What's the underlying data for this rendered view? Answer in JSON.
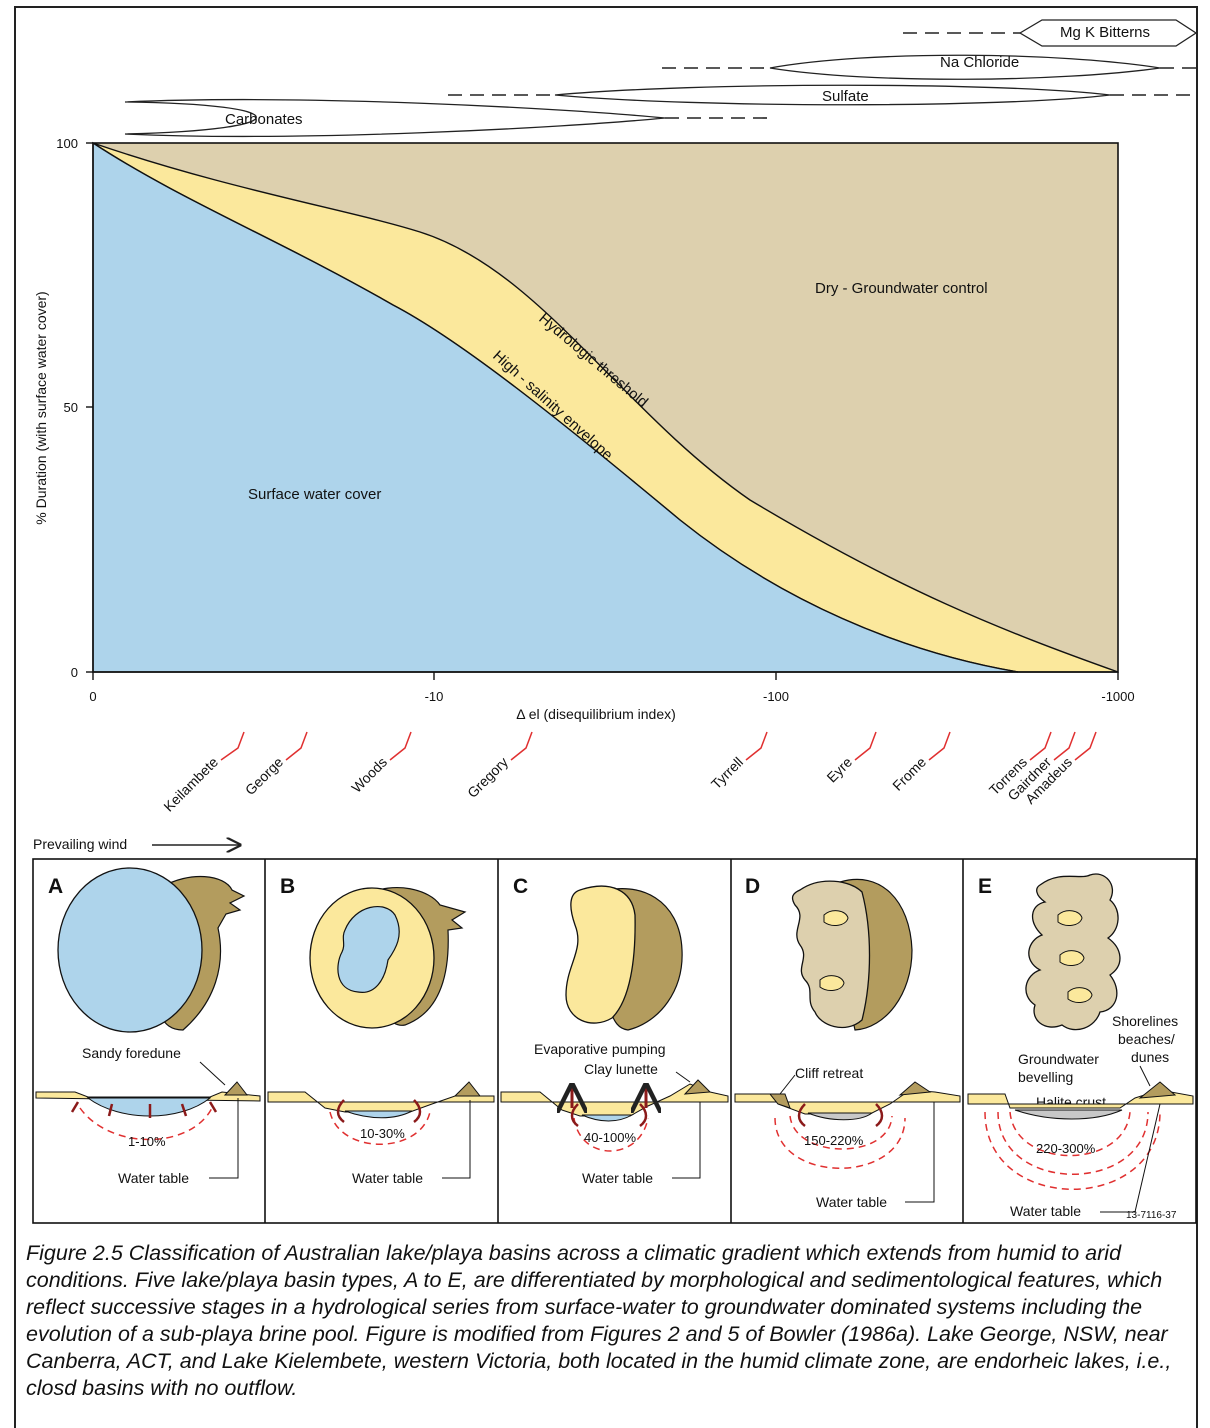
{
  "chart": {
    "y_axis_label": "% Duration (with surface water cover)",
    "x_axis_label": "Δ el (disequilibrium index)",
    "y_ticks": [
      "100",
      "50",
      "0"
    ],
    "x_ticks": [
      "0",
      "-10",
      "-100",
      "-1000"
    ],
    "regions": {
      "surface": "Surface water cover",
      "dry": "Dry - Groundwater control",
      "threshold": "Hydrologic threshold",
      "salinity": "High - salinity envelope"
    },
    "colors": {
      "surface": "#aed4eb",
      "salinity": "#fbe89c",
      "dry": "#ddd0ae",
      "dune": "#b39c5e"
    }
  },
  "mineral_sequence": [
    {
      "name": "Carbonates"
    },
    {
      "name": "Sulfate"
    },
    {
      "name": "Na Chloride"
    },
    {
      "name": "Mg K Bitterns"
    }
  ],
  "lakes": [
    "Keilambete",
    "George",
    "Woods",
    "Gregory",
    "Tyrrell",
    "Eyre",
    "Frome",
    "Torrens",
    "Gairdner",
    "Amadeus"
  ],
  "prevailing_wind": "Prevailing wind",
  "panels": [
    {
      "letter": "A",
      "range": "1-10%",
      "water_table": "Water table",
      "labels": [
        "Sandy foredune"
      ]
    },
    {
      "letter": "B",
      "range": "10-30%",
      "water_table": "Water table",
      "labels": []
    },
    {
      "letter": "C",
      "range": "40-100%",
      "water_table": "Water table",
      "labels": [
        "Evaporative pumping",
        "Clay lunette"
      ]
    },
    {
      "letter": "D",
      "range": "150-220%",
      "water_table": "Water table",
      "labels": [
        "Cliff retreat"
      ]
    },
    {
      "letter": "E",
      "range": "220-300%",
      "water_table": "Water table",
      "labels": [
        "Groundwater",
        "bevelling",
        "Halite crust",
        "Shorelines",
        "beaches/",
        "dunes"
      ]
    }
  ],
  "figure_code": "13-7116-37",
  "caption": "Figure 2.5 Classification of Australian lake/playa basins across a climatic gradient which extends from humid to arid conditions. Five lake/playa basin types, A to E, are differentiated by morphological and sedimentological features, which reflect successive stages in a hydrological series from surface-water to groundwater dominated systems including the evolution of a sub-playa brine pool. Figure is modified from Figures 2 and 5 of Bowler (1986a). Lake George, NSW, near Canberra, ACT, and Lake Kielembete, western Victoria, both located in the humid climate zone, are endorheic lakes, i.e., closd basins with no outflow."
}
